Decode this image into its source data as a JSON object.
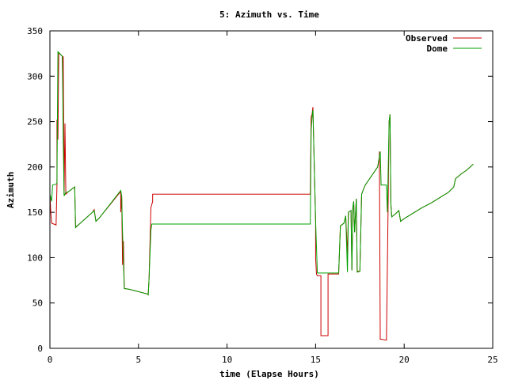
{
  "chart_data": {
    "type": "line",
    "title": "5: Azimuth vs. Time",
    "xlabel": "time (Elapse Hours)",
    "ylabel": "Azimuth",
    "xlim": [
      0,
      25
    ],
    "ylim": [
      0,
      350
    ],
    "xticks": [
      0,
      5,
      10,
      15,
      20,
      25
    ],
    "yticks": [
      0,
      50,
      100,
      150,
      200,
      250,
      300,
      350
    ],
    "grid": false,
    "legend_position": "top-right",
    "series": [
      {
        "name": "Observed",
        "color": "#cc0000",
        "points": [
          [
            0,
            170
          ],
          [
            0.05,
            150
          ],
          [
            0.1,
            138
          ],
          [
            0.35,
            136
          ],
          [
            0.4,
            180
          ],
          [
            0.4,
            252
          ],
          [
            0.45,
            230
          ],
          [
            0.5,
            326
          ],
          [
            0.7,
            322
          ],
          [
            0.72,
            297
          ],
          [
            0.75,
            322
          ],
          [
            0.78,
            240
          ],
          [
            0.8,
            170
          ],
          [
            0.85,
            248
          ],
          [
            0.9,
            170
          ],
          [
            1.0,
            172
          ],
          [
            1.4,
            178
          ],
          [
            1.45,
            134
          ],
          [
            1.6,
            136
          ],
          [
            2.4,
            150
          ],
          [
            2.5,
            153
          ],
          [
            2.6,
            140
          ],
          [
            2.8,
            144
          ],
          [
            4.0,
            173
          ],
          [
            4.0,
            150
          ],
          [
            4.05,
            168
          ],
          [
            4.1,
            92
          ],
          [
            4.15,
            118
          ],
          [
            4.2,
            66
          ],
          [
            4.5,
            65
          ],
          [
            5.5,
            60
          ],
          [
            5.55,
            59
          ],
          [
            5.6,
            78
          ],
          [
            5.7,
            155
          ],
          [
            5.8,
            162
          ],
          [
            5.8,
            170
          ],
          [
            14.7,
            170
          ],
          [
            14.75,
            255
          ],
          [
            14.8,
            258
          ],
          [
            14.85,
            266
          ],
          [
            14.9,
            220
          ],
          [
            15.0,
            140
          ],
          [
            15.0,
            100
          ],
          [
            15.05,
            82
          ],
          [
            15.1,
            80
          ],
          [
            15.3,
            80
          ],
          [
            15.3,
            14
          ],
          [
            15.7,
            14
          ],
          [
            15.7,
            82
          ],
          [
            15.8,
            82
          ],
          [
            16.3,
            82
          ],
          [
            16.4,
            135
          ],
          [
            16.6,
            138
          ],
          [
            16.7,
            146
          ],
          [
            16.8,
            104
          ],
          [
            16.85,
            150
          ],
          [
            17.0,
            152
          ],
          [
            17.05,
            86
          ],
          [
            17.1,
            155
          ],
          [
            17.15,
            162
          ],
          [
            17.2,
            128
          ],
          [
            17.3,
            165
          ],
          [
            17.35,
            85
          ],
          [
            17.5,
            85
          ],
          [
            17.6,
            170
          ],
          [
            17.8,
            180
          ],
          [
            18.5,
            200
          ],
          [
            18.6,
            211
          ],
          [
            18.6,
            217
          ],
          [
            18.65,
            10
          ],
          [
            18.7,
            10
          ],
          [
            19.0,
            9
          ],
          [
            19.05,
            90
          ],
          [
            19.1,
            170
          ],
          [
            19.15,
            250
          ],
          [
            19.2,
            258
          ],
          [
            19.25,
            160
          ],
          [
            19.3,
            145
          ],
          [
            19.5,
            148
          ],
          [
            19.7,
            152
          ],
          [
            19.8,
            140
          ],
          [
            20.0,
            143
          ],
          [
            21.0,
            155
          ],
          [
            21.5,
            160
          ],
          [
            22.0,
            166
          ],
          [
            22.5,
            172
          ],
          [
            22.8,
            178
          ],
          [
            22.9,
            187
          ],
          [
            23.2,
            192
          ],
          [
            23.5,
            196
          ],
          [
            23.9,
            203
          ]
        ]
      },
      {
        "name": "Dome",
        "color": "#00a000",
        "points": [
          [
            0,
            170
          ],
          [
            0.1,
            162
          ],
          [
            0.15,
            180
          ],
          [
            0.35,
            181
          ],
          [
            0.4,
            182
          ],
          [
            0.45,
            327
          ],
          [
            0.7,
            322
          ],
          [
            0.75,
            230
          ],
          [
            0.8,
            168
          ],
          [
            0.9,
            172
          ],
          [
            1.0,
            172
          ],
          [
            1.4,
            178
          ],
          [
            1.45,
            133
          ],
          [
            1.6,
            136
          ],
          [
            2.4,
            150
          ],
          [
            2.5,
            152
          ],
          [
            2.6,
            140
          ],
          [
            2.8,
            144
          ],
          [
            4.0,
            174
          ],
          [
            4.05,
            168
          ],
          [
            4.1,
            128
          ],
          [
            4.2,
            66
          ],
          [
            4.5,
            65
          ],
          [
            5.5,
            60
          ],
          [
            5.55,
            59
          ],
          [
            5.6,
            78
          ],
          [
            5.7,
            130
          ],
          [
            5.75,
            137
          ],
          [
            14.7,
            137
          ],
          [
            14.75,
            240
          ],
          [
            14.8,
            255
          ],
          [
            14.85,
            263
          ],
          [
            14.9,
            220
          ],
          [
            15.0,
            140
          ],
          [
            15.1,
            83
          ],
          [
            16.3,
            83
          ],
          [
            16.4,
            135
          ],
          [
            16.6,
            138
          ],
          [
            16.7,
            146
          ],
          [
            16.8,
            84
          ],
          [
            16.85,
            150
          ],
          [
            17.0,
            152
          ],
          [
            17.05,
            86
          ],
          [
            17.1,
            155
          ],
          [
            17.15,
            162
          ],
          [
            17.2,
            128
          ],
          [
            17.3,
            165
          ],
          [
            17.35,
            84
          ],
          [
            17.5,
            85
          ],
          [
            17.6,
            170
          ],
          [
            17.8,
            180
          ],
          [
            18.5,
            200
          ],
          [
            18.6,
            211
          ],
          [
            18.65,
            217
          ],
          [
            18.7,
            180
          ],
          [
            19.0,
            180
          ],
          [
            19.05,
            150
          ],
          [
            19.1,
            200
          ],
          [
            19.15,
            250
          ],
          [
            19.2,
            258
          ],
          [
            19.25,
            160
          ],
          [
            19.3,
            145
          ],
          [
            19.5,
            148
          ],
          [
            19.7,
            152
          ],
          [
            19.8,
            140
          ],
          [
            20.0,
            143
          ],
          [
            21.0,
            155
          ],
          [
            21.5,
            160
          ],
          [
            22.0,
            166
          ],
          [
            22.5,
            172
          ],
          [
            22.8,
            178
          ],
          [
            22.9,
            187
          ],
          [
            23.2,
            192
          ],
          [
            23.5,
            196
          ],
          [
            23.9,
            203
          ]
        ]
      }
    ]
  }
}
